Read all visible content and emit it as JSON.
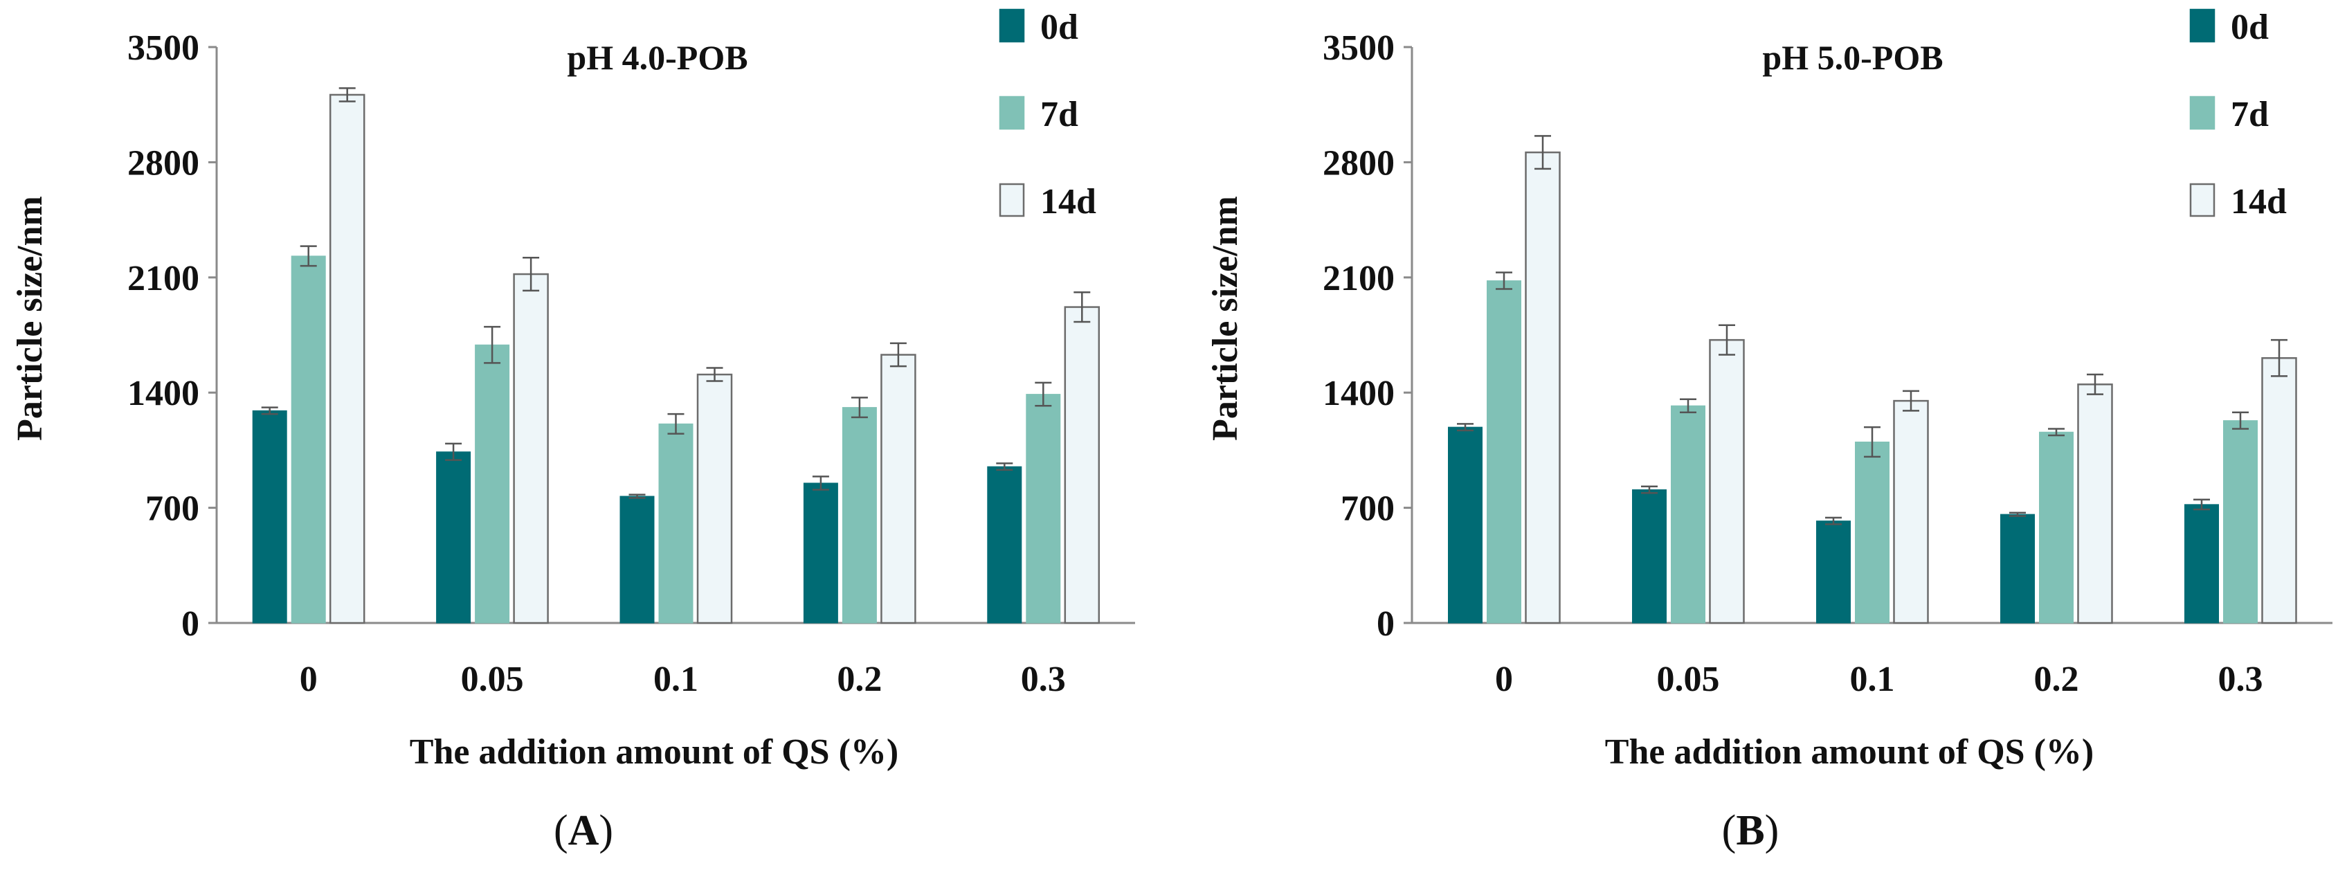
{
  "chart_data": [
    {
      "type": "bar",
      "panel": "(A)",
      "panel_letter": "A",
      "title": "pH 4.0-POB",
      "xlabel": "The addition amount of QS (%)",
      "ylabel": "Particle size/nm",
      "categories": [
        "0",
        "0.05",
        "0.1",
        "0.2",
        "0.3"
      ],
      "ylim": [
        0,
        3500
      ],
      "yticks": [
        "0",
        "700",
        "1400",
        "2100",
        "2800",
        "3500"
      ],
      "legend_position": "top-right",
      "series": [
        {
          "name": "0d",
          "color": "#006b74",
          "values": [
            1290,
            1040,
            770,
            850,
            950
          ],
          "errors": [
            20,
            50,
            10,
            40,
            20
          ]
        },
        {
          "name": "7d",
          "color": "#80c1b6",
          "values": [
            2230,
            1690,
            1210,
            1310,
            1390
          ],
          "errors": [
            60,
            110,
            60,
            60,
            70
          ]
        },
        {
          "name": "14d",
          "color": "#eef6f9",
          "values": [
            3210,
            2120,
            1510,
            1630,
            1920
          ],
          "errors": [
            40,
            100,
            40,
            70,
            90
          ]
        }
      ]
    },
    {
      "type": "bar",
      "panel": "(B)",
      "panel_letter": "B",
      "title": "pH 5.0-POB",
      "xlabel": "The addition amount of QS (%)",
      "ylabel": "Particle size/nm",
      "categories": [
        "0",
        "0.05",
        "0.1",
        "0.2",
        "0.3"
      ],
      "ylim": [
        0,
        3500
      ],
      "yticks": [
        "0",
        "700",
        "1400",
        "2100",
        "2800",
        "3500"
      ],
      "legend_position": "top-right",
      "series": [
        {
          "name": "0d",
          "color": "#006b74",
          "values": [
            1190,
            810,
            620,
            660,
            720
          ],
          "errors": [
            20,
            20,
            20,
            10,
            30
          ]
        },
        {
          "name": "7d",
          "color": "#80c1b6",
          "values": [
            2080,
            1320,
            1100,
            1160,
            1230
          ],
          "errors": [
            50,
            40,
            90,
            20,
            50
          ]
        },
        {
          "name": "14d",
          "color": "#eef6f9",
          "values": [
            2860,
            1720,
            1350,
            1450,
            1610
          ],
          "errors": [
            100,
            90,
            60,
            60,
            110
          ]
        }
      ]
    }
  ]
}
